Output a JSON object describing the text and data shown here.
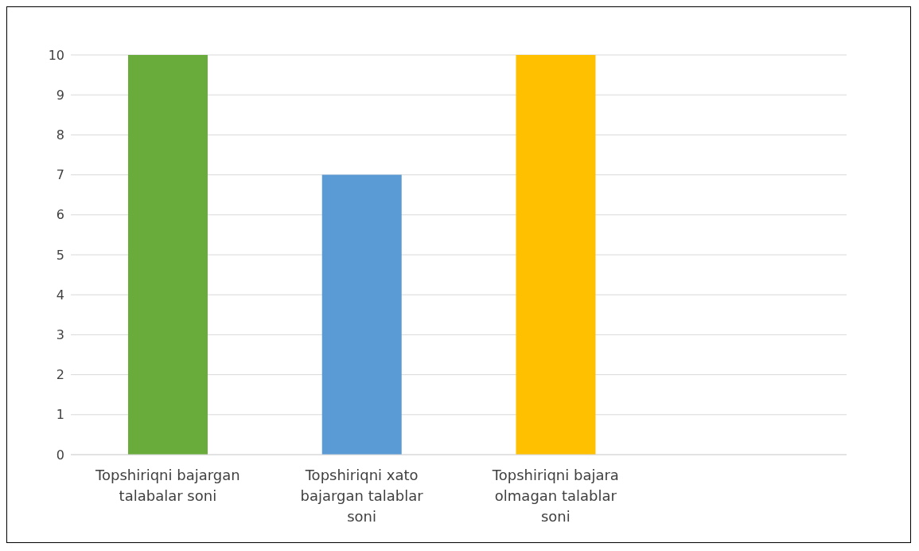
{
  "chart_data": {
    "type": "bar",
    "categories": [
      "Topshiriqni bajargan talabalar soni",
      "Topshiriqni xato bajargan talablar soni",
      "Topshiriqni bajara olmagan talablar soni",
      null
    ],
    "colors": [
      "#6aac3c",
      "#5b9bd5",
      "#ffc000",
      null
    ],
    "values": [
      10,
      7,
      10,
      null
    ],
    "ylim": [
      0,
      10
    ],
    "yticks": [
      0,
      1,
      2,
      3,
      4,
      5,
      6,
      7,
      8,
      9,
      10
    ],
    "grid": "y"
  }
}
